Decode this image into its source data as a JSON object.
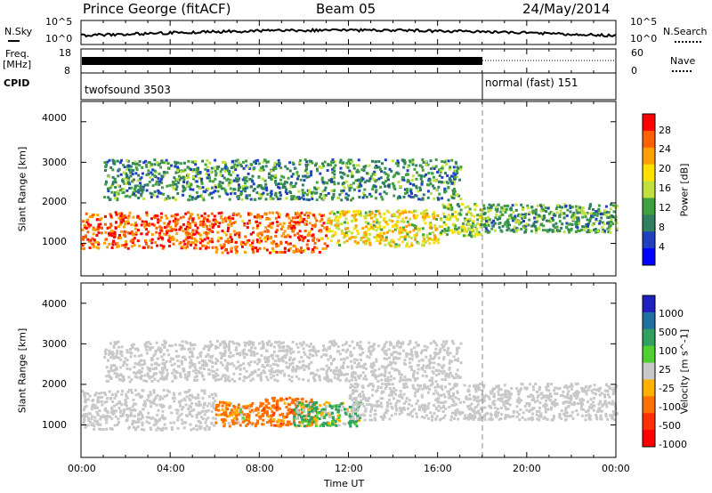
{
  "header": {
    "station": "Prince George (fitACF)",
    "beam": "Beam 05",
    "date": "24/May/2014"
  },
  "summary_panels": {
    "nsky_label": "N.Sky",
    "nsky_ticks": [
      "10^5",
      "10^0"
    ],
    "nsearch_label": "N.Search",
    "freq_label_line1": "Freq.",
    "freq_label_line2": "[MHz]",
    "freq_ticks": [
      "18",
      "8"
    ],
    "nave_label": "Nave",
    "nave_ticks": [
      "60",
      "0"
    ],
    "cpid_label": "CPID",
    "cpid_segments": [
      {
        "name": "twofsound 3503",
        "start_hour": 0,
        "end_hour": 18
      },
      {
        "name": "normal (fast) 151",
        "start_hour": 18,
        "end_hour": 24
      }
    ]
  },
  "power_colorbar": {
    "label": "Power [dB]",
    "ticks": [
      "28",
      "24",
      "20",
      "16",
      "12",
      "8",
      "4"
    ],
    "colors": [
      "#ff0000",
      "#ff6000",
      "#ffa000",
      "#ffe000",
      "#c0e040",
      "#40a040",
      "#308060",
      "#2040c0",
      "#0000ff"
    ]
  },
  "velocity_colorbar": {
    "label": "Velocity [m s^-1]",
    "ticks": [
      "1000",
      "500",
      "100",
      "25",
      "-25",
      "-100",
      "-500",
      "-1000"
    ],
    "colors": [
      "#2020c0",
      "#2070a0",
      "#30a060",
      "#50d030",
      "#c8c8c8",
      "#ffb000",
      "#ff7000",
      "#ff3000",
      "#ff0000"
    ]
  },
  "chart_data": [
    {
      "type": "heatmap",
      "title": "",
      "ylabel": "Slant Range [km]",
      "xlabel": "",
      "xlim": [
        0,
        24
      ],
      "ylim": [
        200,
        4500
      ],
      "y_ticks": [
        "4000",
        "3000",
        "2000",
        "1000"
      ],
      "colorbar_label": "Power [dB]",
      "value_range": [
        0,
        30
      ],
      "scatter_bands": [
        {
          "x_start": 0,
          "x_end": 6,
          "y_center": 1350,
          "y_halfwidth": 450,
          "value": 27
        },
        {
          "x_start": 6,
          "x_end": 11,
          "y_center": 1300,
          "y_halfwidth": 500,
          "value": 26
        },
        {
          "x_start": 11,
          "x_end": 16,
          "y_center": 1400,
          "y_halfwidth": 450,
          "value": 18
        },
        {
          "x_start": 16,
          "x_end": 18,
          "y_center": 1600,
          "y_halfwidth": 400,
          "value": 14
        },
        {
          "x_start": 18,
          "x_end": 24,
          "y_center": 1650,
          "y_halfwidth": 350,
          "value": 10
        },
        {
          "x_start": 1,
          "x_end": 17,
          "y_center": 2600,
          "y_halfwidth": 500,
          "value": 9
        }
      ]
    },
    {
      "type": "heatmap",
      "title": "",
      "ylabel": "Slant Range [km]",
      "xlabel": "Time UT",
      "xlim": [
        0,
        24
      ],
      "ylim": [
        200,
        4500
      ],
      "y_ticks": [
        "4000",
        "3000",
        "2000",
        "1000"
      ],
      "x_ticks": [
        "00:00",
        "04:00",
        "08:00",
        "12:00",
        "16:00",
        "20:00",
        "00:00"
      ],
      "colorbar_label": "Velocity [m s^-1]",
      "value_range": [
        -1000,
        1000
      ],
      "scatter_bands": [
        {
          "x_start": 0,
          "x_end": 6,
          "y_center": 1400,
          "y_halfwidth": 500,
          "value": 0
        },
        {
          "x_start": 6,
          "x_end": 8,
          "y_center": 1300,
          "y_halfwidth": 300,
          "value": -200
        },
        {
          "x_start": 8,
          "x_end": 10.5,
          "y_center": 1350,
          "y_halfwidth": 350,
          "value": -300
        },
        {
          "x_start": 9.5,
          "x_end": 12.5,
          "y_center": 1300,
          "y_halfwidth": 300,
          "value": 150
        },
        {
          "x_start": 12,
          "x_end": 24,
          "y_center": 1600,
          "y_halfwidth": 450,
          "value": 0
        },
        {
          "x_start": 1,
          "x_end": 17,
          "y_center": 2600,
          "y_halfwidth": 500,
          "value": 0
        }
      ]
    }
  ]
}
